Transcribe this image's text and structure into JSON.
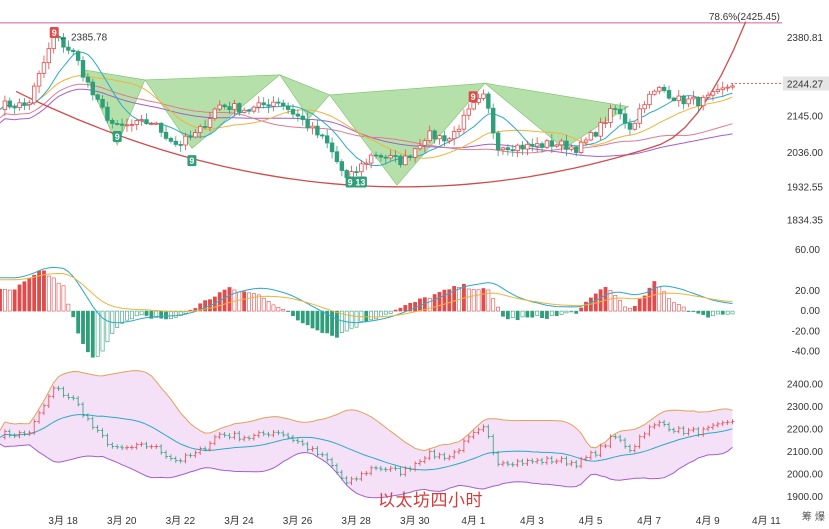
{
  "caption": "以太坊四小时",
  "vendor_text": "筹 爆",
  "colors": {
    "up": "#e04b4b",
    "down": "#2f9e7a",
    "fib": "#d060a0",
    "arc": "#d24b4b",
    "pattern_fill": "#9ed58e",
    "band_fill": "#f2dcf7",
    "band_line": "#e2a15a",
    "ma_blue": "#2ba9c9",
    "ma_orange": "#f0b23c",
    "ma_purple": "#a45ed0",
    "ma_pink": "#e07a90"
  },
  "chart_data": [
    {
      "type": "candlestick",
      "panel": "price",
      "fib_level": {
        "label": "78.6%(2425.45)",
        "value": 2425.45
      },
      "high_label": "2385.78",
      "current_price": "2244.27",
      "y_ticks": [
        "2380.81",
        "2145.00",
        "2036.00",
        "1932.55",
        "1834.35"
      ],
      "y_range": [
        1800,
        2440
      ],
      "x_labels": [
        "3月 18",
        "3月 20",
        "3月 22",
        "3月 24",
        "3月 26",
        "3月 28",
        "3月 30",
        "4月 1",
        "4月 3",
        "4月 5",
        "4月 7",
        "4月 9",
        "4月 11"
      ],
      "badges": [
        {
          "label": "9",
          "style": "red",
          "day": 17.9,
          "value": 2395
        },
        {
          "label": "9",
          "style": "green",
          "day": 20.05,
          "value": 2084
        },
        {
          "label": "9",
          "style": "green",
          "day": 22.6,
          "value": 2012
        },
        {
          "label": "9",
          "style": "green",
          "day": 28.0,
          "value": 1948
        },
        {
          "label": "13",
          "style": "green",
          "day": 28.35,
          "value": 1948
        },
        {
          "label": "9",
          "style": "red",
          "day": 32.2,
          "value": 2203
        }
      ],
      "key_closes": [
        {
          "day": 17.0,
          "value": 2180
        },
        {
          "day": 17.9,
          "value": 2385
        },
        {
          "day": 18.6,
          "value": 2330
        },
        {
          "day": 19.3,
          "value": 2195
        },
        {
          "day": 20.0,
          "value": 2110
        },
        {
          "day": 21.2,
          "value": 2130
        },
        {
          "day": 22.1,
          "value": 2060
        },
        {
          "day": 22.8,
          "value": 2095
        },
        {
          "day": 23.5,
          "value": 2180
        },
        {
          "day": 24.6,
          "value": 2165
        },
        {
          "day": 25.5,
          "value": 2195
        },
        {
          "day": 26.3,
          "value": 2140
        },
        {
          "day": 27.2,
          "value": 2065
        },
        {
          "day": 27.9,
          "value": 1955
        },
        {
          "day": 28.8,
          "value": 2035
        },
        {
          "day": 29.8,
          "value": 2010
        },
        {
          "day": 30.6,
          "value": 2090
        },
        {
          "day": 31.4,
          "value": 2080
        },
        {
          "day": 32.2,
          "value": 2175
        },
        {
          "day": 32.6,
          "value": 2205
        },
        {
          "day": 33.0,
          "value": 2060
        },
        {
          "day": 34.0,
          "value": 2055
        },
        {
          "day": 35.0,
          "value": 2065
        },
        {
          "day": 35.8,
          "value": 2050
        },
        {
          "day": 36.5,
          "value": 2110
        },
        {
          "day": 37.0,
          "value": 2170
        },
        {
          "day": 37.6,
          "value": 2110
        },
        {
          "day": 38.0,
          "value": 2190
        },
        {
          "day": 38.6,
          "value": 2230
        },
        {
          "day": 39.2,
          "value": 2195
        },
        {
          "day": 40.0,
          "value": 2190
        },
        {
          "day": 40.6,
          "value": 2215
        },
        {
          "day": 41.0,
          "value": 2244
        }
      ]
    },
    {
      "type": "histogram",
      "panel": "macd",
      "y_ticks": [
        "60.00",
        "20.00",
        "0.00",
        "-20.00",
        "-40.00"
      ],
      "y_range": [
        -60,
        70
      ],
      "key_values": [
        {
          "day": 16.5,
          "value": 20
        },
        {
          "day": 17.5,
          "value": 40
        },
        {
          "day": 18.2,
          "value": 25
        },
        {
          "day": 18.8,
          "value": -30
        },
        {
          "day": 19.3,
          "value": -50
        },
        {
          "day": 20.0,
          "value": -15
        },
        {
          "day": 20.8,
          "value": -5
        },
        {
          "day": 22.0,
          "value": -8
        },
        {
          "day": 22.8,
          "value": 5
        },
        {
          "day": 23.8,
          "value": 22
        },
        {
          "day": 25.0,
          "value": 15
        },
        {
          "day": 26.3,
          "value": -10
        },
        {
          "day": 27.5,
          "value": -25
        },
        {
          "day": 28.5,
          "value": -10
        },
        {
          "day": 29.5,
          "value": 0
        },
        {
          "day": 30.5,
          "value": 12
        },
        {
          "day": 31.8,
          "value": 25
        },
        {
          "day": 32.7,
          "value": 20
        },
        {
          "day": 33.3,
          "value": -8
        },
        {
          "day": 35.0,
          "value": -5
        },
        {
          "day": 35.8,
          "value": 0
        },
        {
          "day": 36.7,
          "value": 25
        },
        {
          "day": 37.6,
          "value": 0
        },
        {
          "day": 38.4,
          "value": 28
        },
        {
          "day": 39.0,
          "value": 10
        },
        {
          "day": 40.0,
          "value": -5
        },
        {
          "day": 41.0,
          "value": -2
        }
      ]
    },
    {
      "type": "bollinger",
      "panel": "volume_price",
      "y_ticks": [
        "2400.00",
        "2300.00",
        "2200.00",
        "2100.00",
        "2000.00",
        "1900.00"
      ],
      "y_range": [
        1860,
        2430
      ]
    }
  ]
}
